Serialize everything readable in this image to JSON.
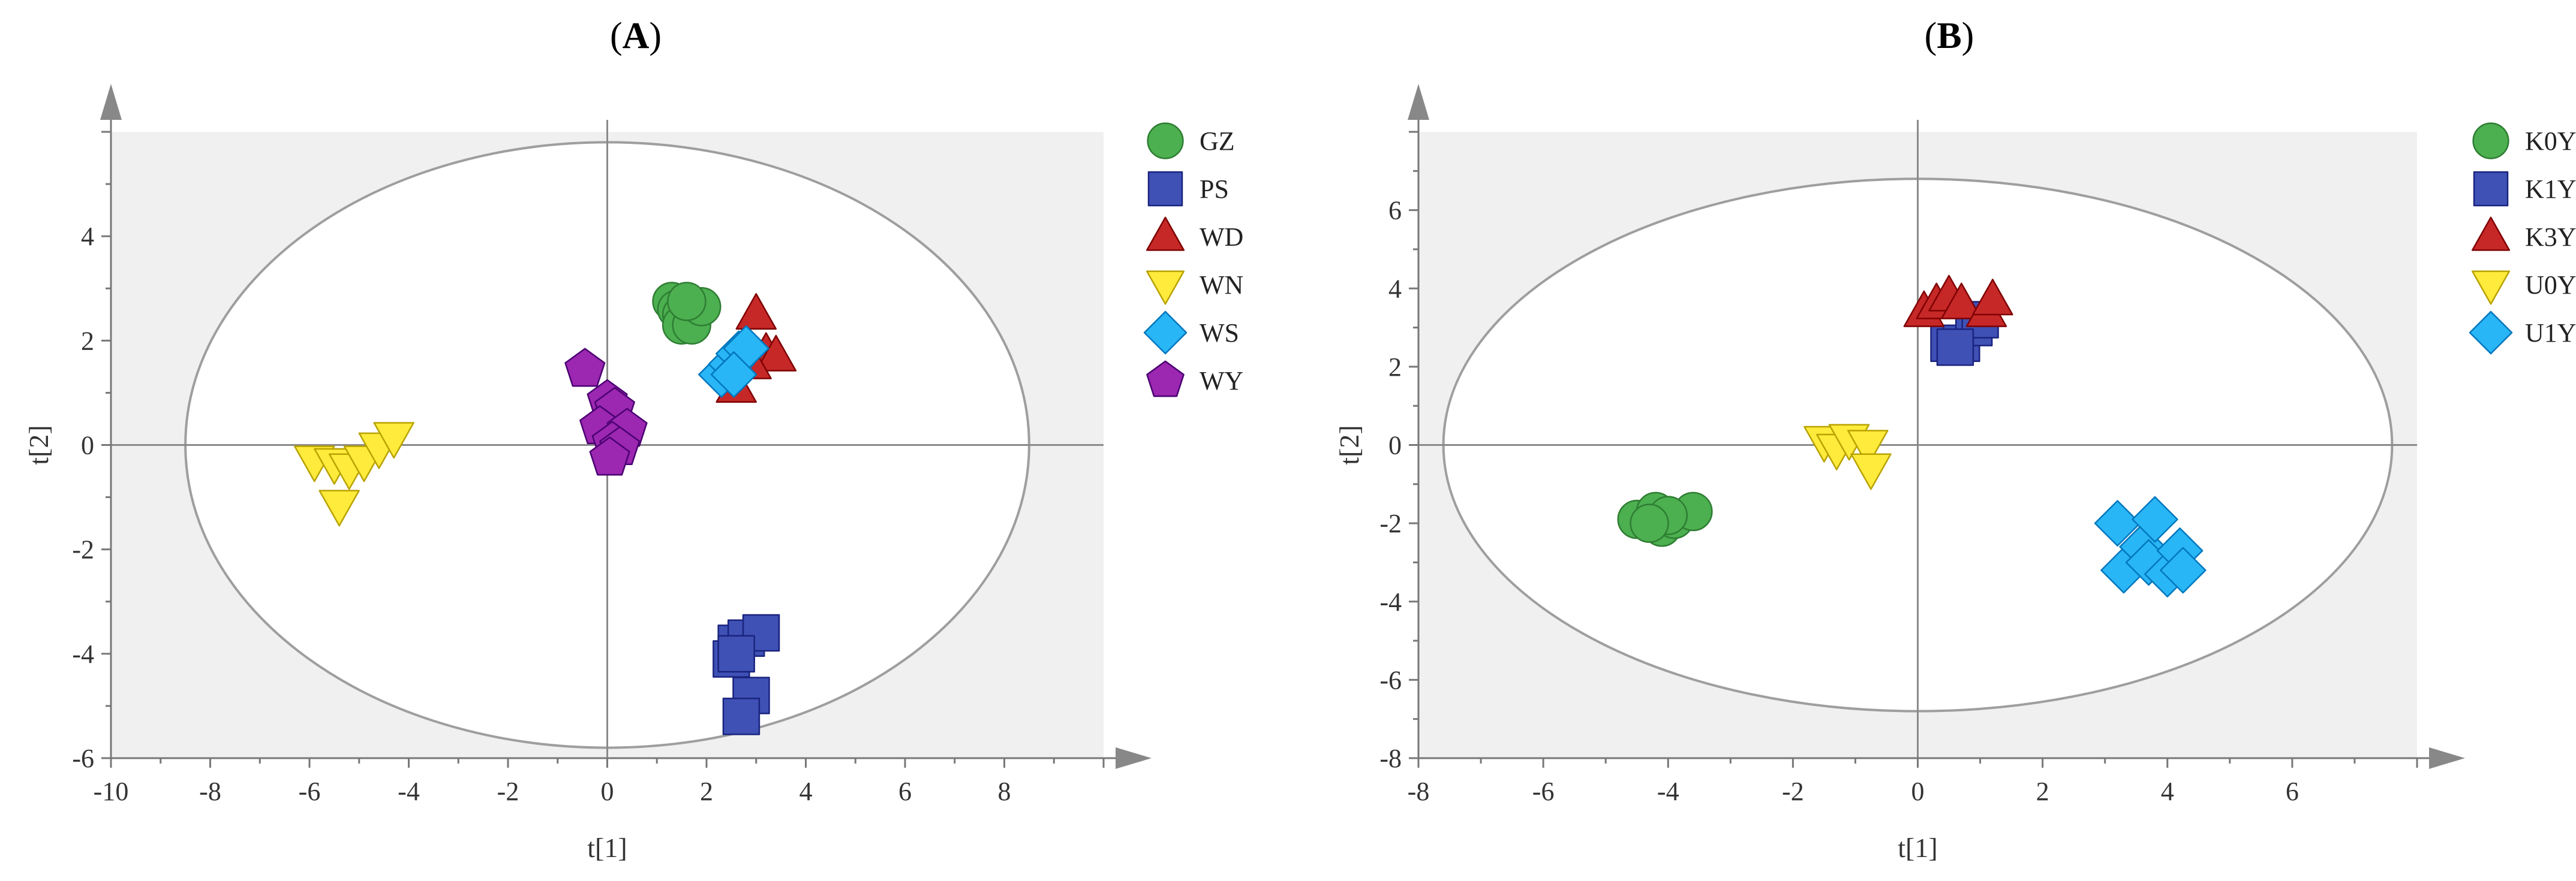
{
  "figure": {
    "panels": [
      "(A)",
      "(B)"
    ]
  },
  "chart_data": [
    {
      "type": "scatter",
      "panel": "(A)",
      "title": "(A)",
      "xlabel": "t[1]",
      "ylabel": "t[2]",
      "xlim": [
        -10,
        10
      ],
      "ylim": [
        -6,
        6
      ],
      "xticks": [
        -10,
        -8,
        -6,
        -4,
        -2,
        0,
        2,
        4,
        6,
        8
      ],
      "yticks": [
        -6,
        -4,
        -2,
        0,
        2,
        4
      ],
      "ellipse": {
        "rx": 8.5,
        "ry": 5.8
      },
      "plot_background": "#f0f0f0",
      "legend_position": "right",
      "series": [
        {
          "name": "GZ",
          "marker": "circle",
          "color": "#4caf50",
          "stroke": "#2e7d32",
          "points": [
            [
              1.3,
              2.75
            ],
            [
              1.4,
              2.6
            ],
            [
              1.5,
              2.5
            ],
            [
              1.5,
              2.3
            ],
            [
              1.7,
              2.3
            ],
            [
              1.9,
              2.65
            ],
            [
              1.6,
              2.75
            ]
          ]
        },
        {
          "name": "PS",
          "marker": "square",
          "color": "#3f51b5",
          "stroke": "#1a237e",
          "points": [
            [
              2.5,
              -4.1
            ],
            [
              2.6,
              -3.8
            ],
            [
              2.8,
              -3.7
            ],
            [
              3.1,
              -3.6
            ],
            [
              2.6,
              -4.0
            ],
            [
              2.9,
              -4.8
            ],
            [
              2.7,
              -5.2
            ]
          ]
        },
        {
          "name": "WD",
          "marker": "triangle-up",
          "color": "#c62828",
          "stroke": "#7f0000",
          "points": [
            [
              3.0,
              2.5
            ],
            [
              3.2,
              1.75
            ],
            [
              3.4,
              1.7
            ],
            [
              2.9,
              1.55
            ],
            [
              2.6,
              1.1
            ]
          ]
        },
        {
          "name": "WN",
          "marker": "triangle-down",
          "color": "#ffeb3b",
          "stroke": "#b8a200",
          "points": [
            [
              -5.9,
              -0.3
            ],
            [
              -5.5,
              -0.35
            ],
            [
              -5.2,
              -0.45
            ],
            [
              -4.9,
              -0.3
            ],
            [
              -4.6,
              -0.05
            ],
            [
              -4.3,
              0.15
            ],
            [
              -5.4,
              -1.15
            ]
          ]
        },
        {
          "name": "WS",
          "marker": "diamond",
          "color": "#29b6f6",
          "stroke": "#0277bd",
          "points": [
            [
              2.3,
              1.35
            ],
            [
              2.5,
              1.55
            ],
            [
              2.65,
              1.75
            ],
            [
              2.8,
              1.85
            ],
            [
              2.55,
              1.35
            ]
          ]
        },
        {
          "name": "WY",
          "marker": "pentagon",
          "color": "#9c27b0",
          "stroke": "#4a0072",
          "points": [
            [
              -0.45,
              1.45
            ],
            [
              0.0,
              0.85
            ],
            [
              0.15,
              0.7
            ],
            [
              -0.15,
              0.35
            ],
            [
              0.4,
              0.3
            ],
            [
              0.1,
              0.05
            ],
            [
              0.25,
              -0.05
            ],
            [
              0.05,
              -0.25
            ]
          ]
        }
      ]
    },
    {
      "type": "scatter",
      "panel": "(B)",
      "title": "(B)",
      "xlabel": "t[1]",
      "ylabel": "t[2]",
      "xlim": [
        -8,
        8
      ],
      "ylim": [
        -8,
        8
      ],
      "xticks": [
        -8,
        -6,
        -4,
        -2,
        0,
        2,
        4,
        6
      ],
      "yticks": [
        -8,
        -6,
        -4,
        -2,
        0,
        2,
        4,
        6
      ],
      "ellipse": {
        "rx": 7.6,
        "ry": 6.8
      },
      "plot_background": "#f0f0f0",
      "legend_position": "right",
      "series": [
        {
          "name": "K0Y",
          "marker": "circle",
          "color": "#4caf50",
          "stroke": "#2e7d32",
          "points": [
            [
              -4.5,
              -1.9
            ],
            [
              -4.2,
              -1.7
            ],
            [
              -4.1,
              -2.1
            ],
            [
              -3.9,
              -1.9
            ],
            [
              -3.6,
              -1.7
            ],
            [
              -4.0,
              -1.8
            ],
            [
              -4.3,
              -2.0
            ]
          ]
        },
        {
          "name": "K1Y",
          "marker": "square",
          "color": "#3f51b5",
          "stroke": "#1a237e",
          "points": [
            [
              0.5,
              2.6
            ],
            [
              0.7,
              2.6
            ],
            [
              0.9,
              3.0
            ],
            [
              1.0,
              3.2
            ],
            [
              0.6,
              2.5
            ]
          ]
        },
        {
          "name": "K3Y",
          "marker": "triangle-up",
          "color": "#c62828",
          "stroke": "#7f0000",
          "points": [
            [
              0.1,
              3.4
            ],
            [
              0.3,
              3.6
            ],
            [
              0.5,
              3.8
            ],
            [
              0.7,
              3.6
            ],
            [
              1.1,
              3.4
            ],
            [
              1.2,
              3.7
            ]
          ]
        },
        {
          "name": "U0Y",
          "marker": "triangle-down",
          "color": "#ffeb3b",
          "stroke": "#b8a200",
          "points": [
            [
              -1.5,
              0.1
            ],
            [
              -1.3,
              -0.1
            ],
            [
              -1.1,
              0.15
            ],
            [
              -0.8,
              0.0
            ],
            [
              -0.75,
              -0.6
            ]
          ]
        },
        {
          "name": "U1Y",
          "marker": "diamond",
          "color": "#29b6f6",
          "stroke": "#0277bd",
          "points": [
            [
              3.2,
              -2.0
            ],
            [
              3.3,
              -3.2
            ],
            [
              3.6,
              -2.6
            ],
            [
              3.8,
              -1.9
            ],
            [
              3.7,
              -3.0
            ],
            [
              4.0,
              -3.3
            ],
            [
              4.2,
              -2.7
            ],
            [
              4.25,
              -3.2
            ]
          ]
        }
      ]
    }
  ]
}
